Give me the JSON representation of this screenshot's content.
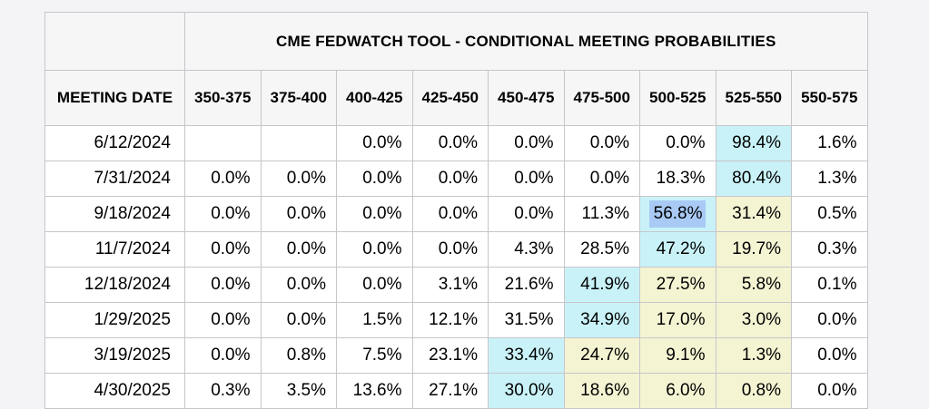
{
  "table": {
    "title": "CME FEDWATCH TOOL - CONDITIONAL MEETING PROBABILITIES",
    "date_column_header": "MEETING DATE",
    "bin_headers": [
      "350-375",
      "375-400",
      "400-425",
      "425-450",
      "450-475",
      "475-500",
      "500-525",
      "525-550",
      "550-575"
    ],
    "rows": [
      {
        "date": "6/12/2024",
        "values": [
          "",
          "",
          "0.0%",
          "0.0%",
          "0.0%",
          "0.0%",
          "0.0%",
          "98.4%",
          "1.6%"
        ],
        "highlights": [
          "",
          "",
          "",
          "",
          "",
          "",
          "",
          "cyan",
          ""
        ],
        "selected_col": null
      },
      {
        "date": "7/31/2024",
        "values": [
          "0.0%",
          "0.0%",
          "0.0%",
          "0.0%",
          "0.0%",
          "0.0%",
          "18.3%",
          "80.4%",
          "1.3%"
        ],
        "highlights": [
          "",
          "",
          "",
          "",
          "",
          "",
          "",
          "cyan",
          ""
        ],
        "selected_col": null
      },
      {
        "date": "9/18/2024",
        "values": [
          "0.0%",
          "0.0%",
          "0.0%",
          "0.0%",
          "0.0%",
          "11.3%",
          "56.8%",
          "31.4%",
          "0.5%"
        ],
        "highlights": [
          "",
          "",
          "",
          "",
          "",
          "",
          "cyan",
          "yellow",
          ""
        ],
        "selected_col": 6
      },
      {
        "date": "11/7/2024",
        "values": [
          "0.0%",
          "0.0%",
          "0.0%",
          "0.0%",
          "4.3%",
          "28.5%",
          "47.2%",
          "19.7%",
          "0.3%"
        ],
        "highlights": [
          "",
          "",
          "",
          "",
          "",
          "",
          "cyan",
          "yellow",
          ""
        ],
        "selected_col": null
      },
      {
        "date": "12/18/2024",
        "values": [
          "0.0%",
          "0.0%",
          "0.0%",
          "3.1%",
          "21.6%",
          "41.9%",
          "27.5%",
          "5.8%",
          "0.1%"
        ],
        "highlights": [
          "",
          "",
          "",
          "",
          "",
          "cyan",
          "yellow",
          "yellow",
          ""
        ],
        "selected_col": null
      },
      {
        "date": "1/29/2025",
        "values": [
          "0.0%",
          "0.0%",
          "1.5%",
          "12.1%",
          "31.5%",
          "34.9%",
          "17.0%",
          "3.0%",
          "0.0%"
        ],
        "highlights": [
          "",
          "",
          "",
          "",
          "",
          "cyan",
          "yellow",
          "yellow",
          ""
        ],
        "selected_col": null
      },
      {
        "date": "3/19/2025",
        "values": [
          "0.0%",
          "0.8%",
          "7.5%",
          "23.1%",
          "33.4%",
          "24.7%",
          "9.1%",
          "1.3%",
          "0.0%"
        ],
        "highlights": [
          "",
          "",
          "",
          "",
          "cyan",
          "yellow",
          "yellow",
          "yellow",
          ""
        ],
        "selected_col": null
      },
      {
        "date": "4/30/2025",
        "values": [
          "0.3%",
          "3.5%",
          "13.6%",
          "27.1%",
          "30.0%",
          "18.6%",
          "6.0%",
          "0.8%",
          "0.0%"
        ],
        "highlights": [
          "",
          "",
          "",
          "",
          "cyan",
          "yellow",
          "yellow",
          "yellow",
          ""
        ],
        "selected_col": null
      }
    ],
    "colors": {
      "cyan": "#c9f2f8",
      "yellow": "#f4f4d3",
      "selection": "#a8caf5",
      "header_bg": "#f6f6f7",
      "border": "#c6c6cb"
    }
  },
  "chart_data": {
    "type": "table",
    "title": "CME FEDWATCH TOOL - CONDITIONAL MEETING PROBABILITIES",
    "row_label": "MEETING DATE",
    "columns": [
      "350-375",
      "375-400",
      "400-425",
      "425-450",
      "450-475",
      "475-500",
      "500-525",
      "525-550",
      "550-575"
    ],
    "units": "percent",
    "rows": [
      {
        "date": "6/12/2024",
        "values": [
          null,
          null,
          0.0,
          0.0,
          0.0,
          0.0,
          0.0,
          98.4,
          1.6
        ]
      },
      {
        "date": "7/31/2024",
        "values": [
          0.0,
          0.0,
          0.0,
          0.0,
          0.0,
          0.0,
          18.3,
          80.4,
          1.3
        ]
      },
      {
        "date": "9/18/2024",
        "values": [
          0.0,
          0.0,
          0.0,
          0.0,
          0.0,
          11.3,
          56.8,
          31.4,
          0.5
        ]
      },
      {
        "date": "11/7/2024",
        "values": [
          0.0,
          0.0,
          0.0,
          0.0,
          4.3,
          28.5,
          47.2,
          19.7,
          0.3
        ]
      },
      {
        "date": "12/18/2024",
        "values": [
          0.0,
          0.0,
          0.0,
          3.1,
          21.6,
          41.9,
          27.5,
          5.8,
          0.1
        ]
      },
      {
        "date": "1/29/2025",
        "values": [
          0.0,
          0.0,
          1.5,
          12.1,
          31.5,
          34.9,
          17.0,
          3.0,
          0.0
        ]
      },
      {
        "date": "3/19/2025",
        "values": [
          0.0,
          0.8,
          7.5,
          23.1,
          33.4,
          24.7,
          9.1,
          1.3,
          0.0
        ]
      },
      {
        "date": "4/30/2025",
        "values": [
          0.3,
          3.5,
          13.6,
          27.1,
          30.0,
          18.6,
          6.0,
          0.8,
          0.0
        ]
      }
    ],
    "highlight_legend": {
      "cyan": "most likely rate range for that meeting",
      "yellow": "rate ranges above the most likely range",
      "selection": "user text selection on 56.8% cell (9/18/2024, 500-525)"
    }
  }
}
